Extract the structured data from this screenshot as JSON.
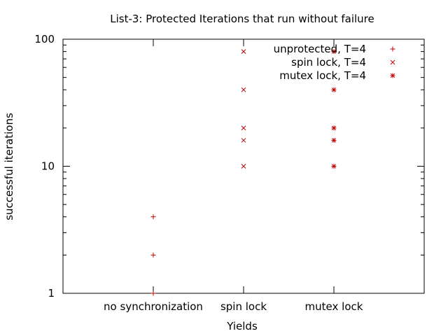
{
  "chart_data": {
    "type": "scatter",
    "title": "List-3: Protected Iterations that run without failure",
    "xlabel": "Yields",
    "ylabel": "successful iterations",
    "categories": [
      "no synchronization",
      "spin lock",
      "mutex lock"
    ],
    "y_scale": "log",
    "ylim": [
      1,
      100
    ],
    "y_ticks": [
      "1",
      "10",
      "100"
    ],
    "grid": false,
    "legend_position": "top-right",
    "series": [
      {
        "name": "unprotected, T=4",
        "marker": "plus",
        "points": [
          {
            "category": "no synchronization",
            "y": 1
          },
          {
            "category": "no synchronization",
            "y": 2
          },
          {
            "category": "no synchronization",
            "y": 4
          }
        ]
      },
      {
        "name": "spin lock, T=4",
        "marker": "x",
        "points": [
          {
            "category": "spin lock",
            "y": 10
          },
          {
            "category": "spin lock",
            "y": 16
          },
          {
            "category": "spin lock",
            "y": 20
          },
          {
            "category": "spin lock",
            "y": 40
          },
          {
            "category": "spin lock",
            "y": 80
          }
        ]
      },
      {
        "name": "mutex lock, T=4",
        "marker": "star",
        "points": [
          {
            "category": "mutex lock",
            "y": 10
          },
          {
            "category": "mutex lock",
            "y": 16
          },
          {
            "category": "mutex lock",
            "y": 20
          },
          {
            "category": "mutex lock",
            "y": 40
          },
          {
            "category": "mutex lock",
            "y": 80
          }
        ]
      }
    ],
    "marker_color": "#c00000"
  }
}
